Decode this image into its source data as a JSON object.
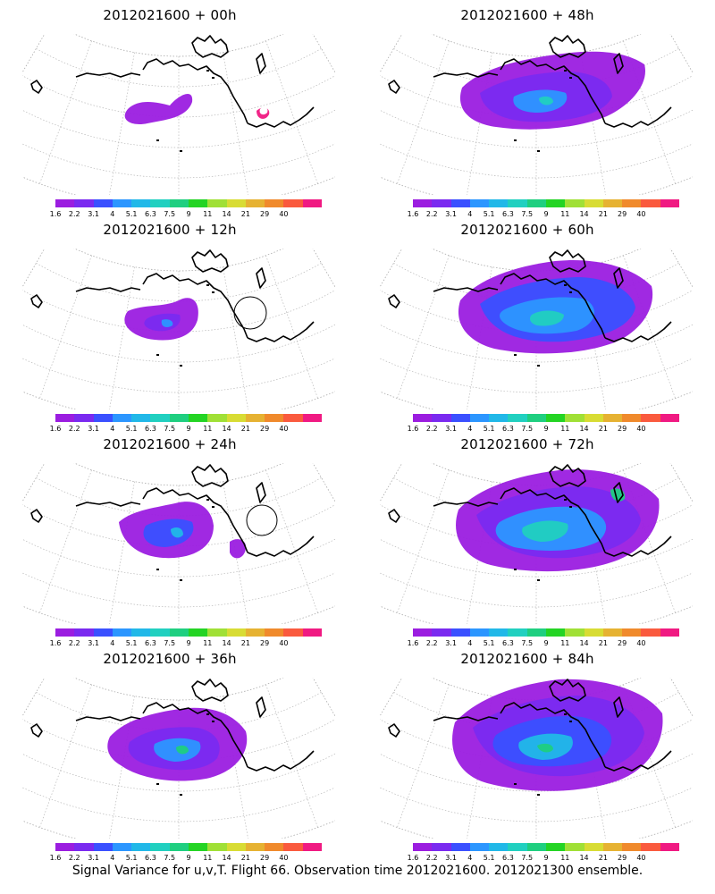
{
  "colorbar": {
    "colors": [
      "#9b1de0",
      "#7a2af0",
      "#3a50ff",
      "#2c96ff",
      "#21b8e8",
      "#21d0c0",
      "#1fcf80",
      "#24d424",
      "#a0e036",
      "#d8dc34",
      "#e6b232",
      "#f08a2c",
      "#fa5a3e",
      "#f01a82"
    ],
    "labels": [
      "1.6",
      "2.2",
      "3.1",
      "4",
      "5.1",
      "6.3",
      "7.5",
      "9",
      "11",
      "14",
      "21",
      "29",
      "40"
    ]
  },
  "panels": [
    {
      "id": "p00",
      "title": "2012021600 + 00h"
    },
    {
      "id": "p48",
      "title": "2012021600 + 48h"
    },
    {
      "id": "p12",
      "title": "2012021600 + 12h"
    },
    {
      "id": "p60",
      "title": "2012021600 + 60h"
    },
    {
      "id": "p24",
      "title": "2012021600 + 24h"
    },
    {
      "id": "p72",
      "title": "2012021600 + 72h"
    },
    {
      "id": "p36",
      "title": "2012021600 + 36h"
    },
    {
      "id": "p84",
      "title": "2012021600 + 84h"
    }
  ],
  "caption": "Signal Variance for u,v,T. Flight 66. Observation time 2012021600. 2012021300 ensemble."
}
